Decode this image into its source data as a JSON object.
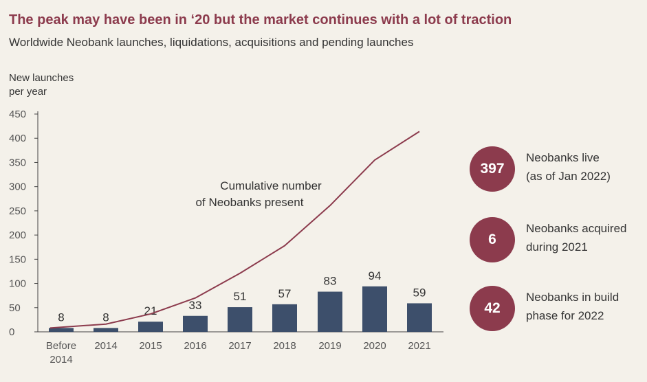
{
  "title": "The peak may have been in ‘20 but the market continues with a lot of traction",
  "subtitle": "Worldwide Neobank launches, liquidations, acquisitions and pending launches",
  "colors": {
    "title": "#8c3b4d",
    "bar": "#3d4f6b",
    "line": "#8c3b4d",
    "circle": "#8c3b4d",
    "background": "#f4f1ea"
  },
  "chart_data": {
    "type": "bar",
    "title": "",
    "ylabel_lines": [
      "New launches",
      "per year"
    ],
    "xlabel": "",
    "ylim": [
      0,
      450
    ],
    "yticks": [
      0,
      50,
      100,
      150,
      200,
      250,
      300,
      350,
      400,
      450
    ],
    "categories": [
      [
        "Before",
        "2014"
      ],
      [
        "2014"
      ],
      [
        "2015"
      ],
      [
        "2016"
      ],
      [
        "2017"
      ],
      [
        "2018"
      ],
      [
        "2019"
      ],
      [
        "2020"
      ],
      [
        "2021"
      ]
    ],
    "series": [
      {
        "type": "bar",
        "values": [
          8,
          8,
          21,
          33,
          51,
          57,
          83,
          94,
          59
        ]
      },
      {
        "type": "line",
        "values": [
          8,
          16,
          37,
          70,
          121,
          178,
          261,
          355,
          414
        ]
      }
    ],
    "annotations": [
      {
        "text_lines": [
          "Cumulative number",
          "of Neobanks present"
        ]
      }
    ],
    "grid": false
  },
  "stats": [
    {
      "value": "397",
      "lines": [
        "Neobanks live",
        "(as of Jan 2022)"
      ]
    },
    {
      "value": "6",
      "lines": [
        "Neobanks acquired",
        "during 2021"
      ]
    },
    {
      "value": "42",
      "lines": [
        "Neobanks in build",
        "phase for 2022"
      ]
    }
  ]
}
